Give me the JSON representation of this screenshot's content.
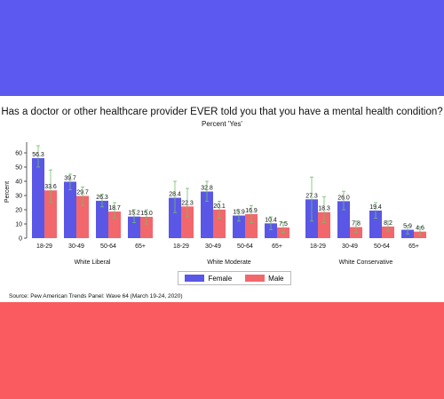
{
  "colors": {
    "top_band": "#5b59ef",
    "bottom_band": "#f95b60",
    "female": "#5a57e6",
    "male": "#f2676c",
    "errorbar": "#6fbf6a"
  },
  "title": "Has a doctor or other healthcare provider EVER told you that you have a mental health condition?",
  "subtitle": "Percent 'Yes'",
  "source": "Source: Pew American Trends Panel: Wave 64 (March 19-24, 2020)",
  "chart_data": {
    "type": "bar",
    "ylabel": "Percent",
    "ylim": [
      0,
      65
    ],
    "yticks": [
      "0",
      "10",
      "20",
      "30",
      "40",
      "50",
      "60"
    ],
    "grid": false,
    "legend_position": "bottom-center",
    "legend": [
      "Female",
      "Male"
    ],
    "groups": [
      {
        "name": "White Liberal",
        "categories": [
          "18-29",
          "30-49",
          "50-64",
          "65+"
        ],
        "female": [
          56.3,
          39.7,
          26.3,
          15.2
        ],
        "female_labels": [
          "56.3",
          "39.7",
          "26.3",
          "15.2"
        ],
        "male": [
          33.6,
          29.7,
          18.7,
          15.0
        ],
        "male_labels": [
          "33.6",
          "29.7",
          "18.7",
          "15.0"
        ],
        "female_ci": [
          [
            50,
            65
          ],
          [
            34,
            45
          ],
          [
            22,
            31
          ],
          [
            11,
            20
          ]
        ],
        "male_ci": [
          [
            25,
            48
          ],
          [
            23,
            36
          ],
          [
            14,
            25
          ],
          [
            10,
            20
          ]
        ]
      },
      {
        "name": "White Moderate",
        "categories": [
          "18-29",
          "30-49",
          "50-64",
          "65+"
        ],
        "female": [
          28.4,
          32.8,
          15.9,
          10.4
        ],
        "female_labels": [
          "28.4",
          "32.8",
          "15.9",
          "10.4"
        ],
        "male": [
          22.3,
          20.1,
          16.9,
          7.5
        ],
        "male_labels": [
          "22.3",
          "20.1",
          "16.9",
          "7.5"
        ],
        "female_ci": [
          [
            18,
            40
          ],
          [
            26,
            40
          ],
          [
            12,
            20
          ],
          [
            6,
            15
          ]
        ],
        "male_ci": [
          [
            15,
            35
          ],
          [
            14,
            26
          ],
          [
            11,
            23
          ],
          [
            4,
            11
          ]
        ]
      },
      {
        "name": "White Conservative",
        "categories": [
          "18-29",
          "30-49",
          "50-64",
          "65+"
        ],
        "female": [
          27.3,
          26.0,
          19.4,
          5.9
        ],
        "female_labels": [
          "27.3",
          "26.0",
          "19.4",
          "5.9"
        ],
        "male": [
          18.3,
          7.8,
          8.2,
          4.6
        ],
        "male_labels": [
          "18.3",
          "7.8",
          "8.2",
          "4.6"
        ],
        "female_ci": [
          [
            12,
            43
          ],
          [
            20,
            33
          ],
          [
            14,
            25
          ],
          [
            3,
            9
          ]
        ],
        "male_ci": [
          [
            11,
            29
          ],
          [
            4,
            12
          ],
          [
            5,
            12
          ],
          [
            2,
            8
          ]
        ]
      }
    ]
  }
}
